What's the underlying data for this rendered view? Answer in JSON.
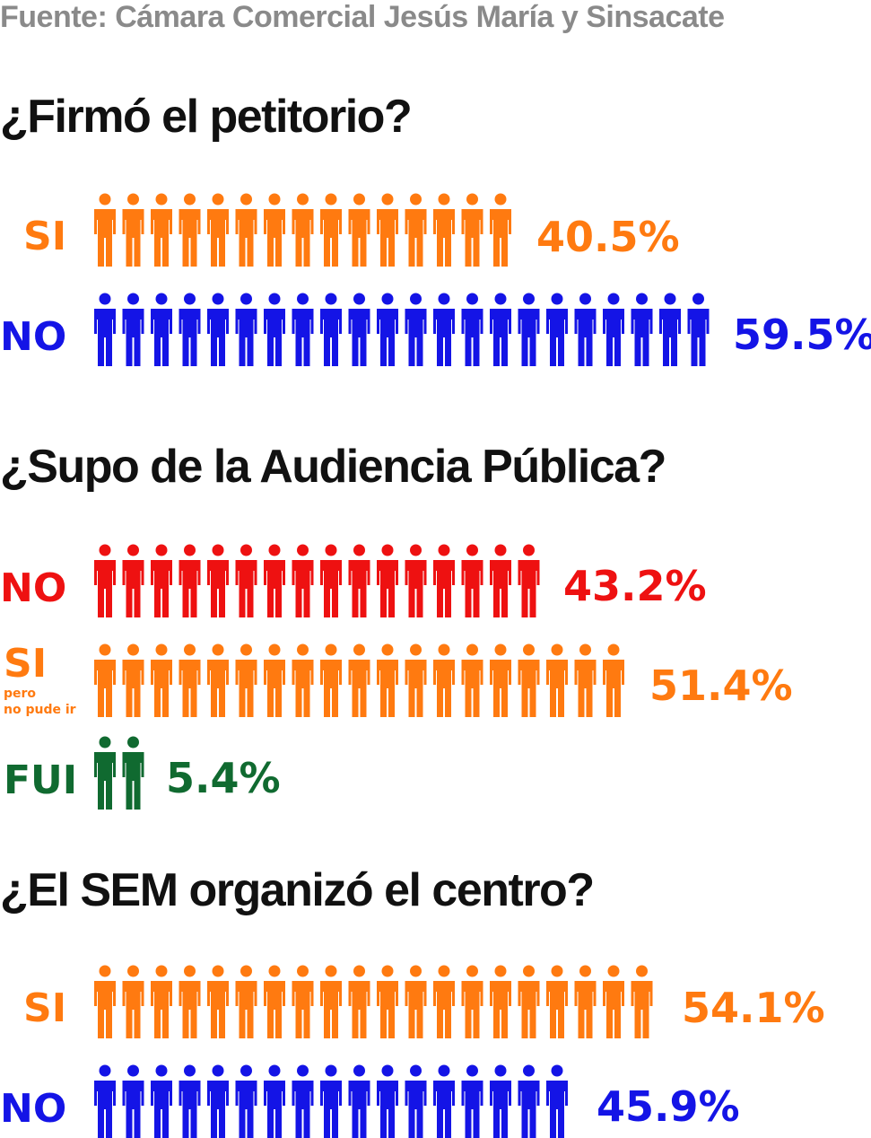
{
  "source": "Fuente: Cámara Comercial Jesús María y Sinsacate",
  "colors": {
    "orange": "#ff7a10",
    "blue": "#1414e6",
    "red": "#ee1111",
    "green": "#106a30"
  },
  "icon": "person-icon",
  "chart_data": [
    {
      "type": "bar",
      "title": "¿Firmó el petitorio?",
      "categories": [
        "SI",
        "NO"
      ],
      "values": [
        40.5,
        59.5
      ],
      "labels": [
        "40.5%",
        "59.5%"
      ],
      "unit": "%"
    },
    {
      "type": "bar",
      "title": "¿Supo de la Audiencia Pública?",
      "categories": [
        "NO",
        "SI",
        "FUI"
      ],
      "category_notes": [
        "",
        "pero no pude ir",
        ""
      ],
      "values": [
        43.2,
        51.4,
        5.4
      ],
      "labels": [
        "43.2%",
        "51.4%",
        "5.4%"
      ],
      "unit": "%"
    },
    {
      "type": "bar",
      "title": "¿El SEM organizó el centro?",
      "categories": [
        "SI",
        "NO"
      ],
      "values": [
        54.1,
        45.9
      ],
      "labels": [
        "54.1%",
        "45.9%"
      ],
      "unit": "%"
    }
  ],
  "sublabel_lines": [
    "pero",
    "no pude ir"
  ]
}
